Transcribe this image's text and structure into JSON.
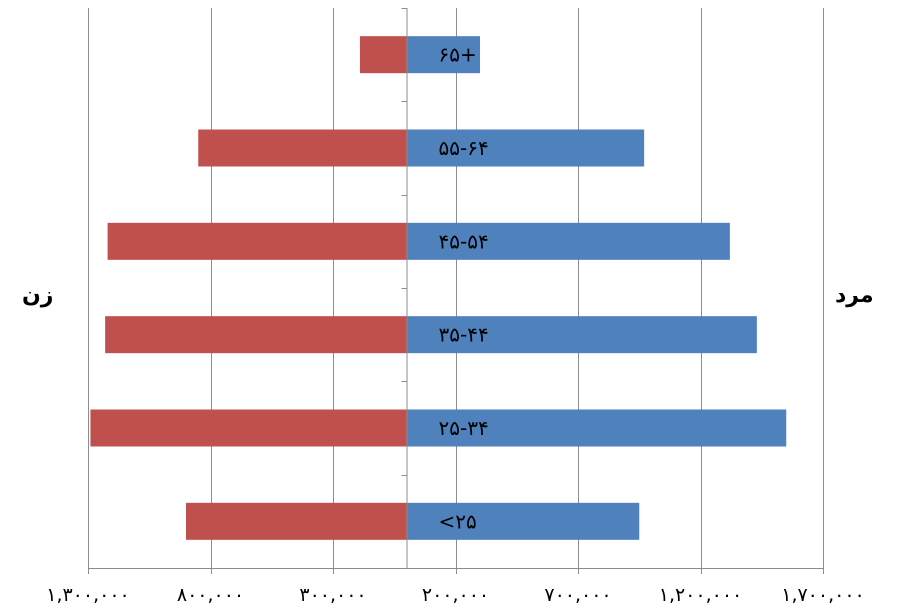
{
  "chart_data": {
    "type": "bar",
    "orientation": "horizontal",
    "layout": "population-pyramid",
    "categories": [
      "<۲۵",
      "۲۵-۳۴",
      "۳۵-۴۴",
      "۴۵-۵۴",
      "۵۵-۶۴",
      "۶۵+"
    ],
    "series": [
      {
        "name": "مرد",
        "color": "#4F81BD",
        "values": [
          950000,
          1550000,
          1430000,
          1320000,
          970000,
          300000
        ]
      },
      {
        "name": "زن",
        "color": "#C0504D",
        "values": [
          900000,
          1290000,
          1230000,
          1220000,
          850000,
          190000
        ]
      }
    ],
    "xlim": [
      -1300000,
      1700000
    ],
    "x_ticks": [
      -1300000,
      -800000,
      -300000,
      200000,
      700000,
      1200000,
      1700000
    ],
    "x_tick_labels": [
      "۱,۳۰۰,۰۰۰",
      "۸۰۰,۰۰۰",
      "۳۰۰,۰۰۰",
      "۲۰۰,۰۰۰",
      "۷۰۰,۰۰۰",
      "۱,۲۰۰,۰۰۰",
      "۱,۷۰۰,۰۰۰"
    ],
    "grid": "vertical",
    "legend": "none"
  },
  "side_labels": {
    "male": "مرد",
    "female": "زن"
  }
}
